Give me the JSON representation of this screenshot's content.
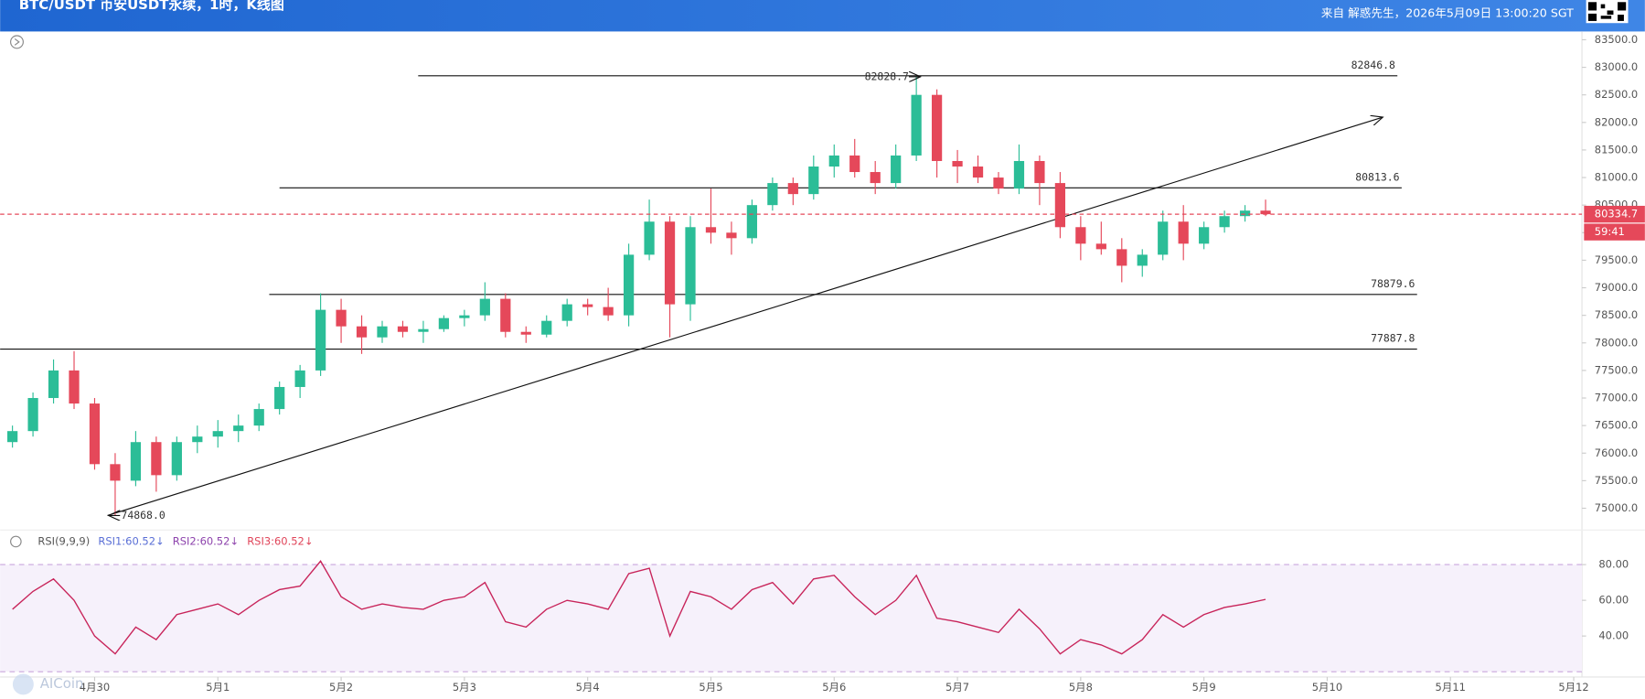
{
  "header": {
    "title": "BTC/USDT 币安USDT永续，1时，K线图",
    "source": "来自 解惑先生，2026年5月09日 13:00:20 SGT"
  },
  "watermark": "AICoin",
  "chart_data": [
    {
      "type": "candlestick",
      "x": [
        "2026-04-29 08:00",
        "2026-04-29 12:00",
        "2026-04-29 16:00",
        "2026-04-29 20:00",
        "2026-04-30 00:00",
        "2026-04-30 04:00",
        "2026-04-30 08:00",
        "2026-04-30 12:00",
        "2026-04-30 16:00",
        "2026-04-30 20:00",
        "2026-05-01 00:00",
        "2026-05-01 04:00",
        "2026-05-01 08:00",
        "2026-05-01 12:00",
        "2026-05-01 16:00",
        "2026-05-01 20:00",
        "2026-05-02 00:00",
        "2026-05-02 04:00",
        "2026-05-02 08:00",
        "2026-05-02 12:00",
        "2026-05-02 16:00",
        "2026-05-02 20:00",
        "2026-05-03 00:00",
        "2026-05-03 04:00",
        "2026-05-03 08:00",
        "2026-05-03 12:00",
        "2026-05-03 16:00",
        "2026-05-03 20:00",
        "2026-05-04 00:00",
        "2026-05-04 04:00",
        "2026-05-04 08:00",
        "2026-05-04 12:00",
        "2026-05-04 16:00",
        "2026-05-04 20:00",
        "2026-05-05 00:00",
        "2026-05-05 04:00",
        "2026-05-05 08:00",
        "2026-05-05 12:00",
        "2026-05-05 16:00",
        "2026-05-05 20:00",
        "2026-05-06 00:00",
        "2026-05-06 04:00",
        "2026-05-06 08:00",
        "2026-05-06 12:00",
        "2026-05-06 16:00",
        "2026-05-06 20:00",
        "2026-05-07 00:00",
        "2026-05-07 04:00",
        "2026-05-07 08:00",
        "2026-05-07 12:00",
        "2026-05-07 16:00",
        "2026-05-07 20:00",
        "2026-05-08 00:00",
        "2026-05-08 04:00",
        "2026-05-08 08:00",
        "2026-05-08 12:00",
        "2026-05-08 16:00",
        "2026-05-08 20:00",
        "2026-05-09 00:00",
        "2026-05-09 04:00",
        "2026-05-09 08:00",
        "2026-05-09 12:00"
      ],
      "open": [
        76200,
        76400,
        77000,
        77500,
        76900,
        75800,
        75500,
        76200,
        75600,
        76200,
        76300,
        76400,
        76500,
        76800,
        77200,
        77500,
        78600,
        78300,
        78100,
        78300,
        78200,
        78250,
        78450,
        78500,
        78800,
        78200,
        78150,
        78400,
        78700,
        78650,
        78500,
        79600,
        80200,
        78700,
        80100,
        80000,
        79900,
        80500,
        80900,
        80700,
        81200,
        81400,
        81100,
        80900,
        81400,
        82500,
        81300,
        81200,
        81000,
        80800,
        81300,
        80900,
        80100,
        79800,
        79700,
        79400,
        79600,
        80200,
        79800,
        80100,
        80300,
        80400
      ],
      "high": [
        76500,
        77100,
        77700,
        77850,
        77000,
        76000,
        76400,
        76300,
        76300,
        76500,
        76600,
        76700,
        76900,
        77300,
        77600,
        78900,
        78800,
        78500,
        78400,
        78400,
        78400,
        78500,
        78600,
        79100,
        78900,
        78300,
        78500,
        78800,
        78800,
        79000,
        79800,
        80600,
        80300,
        80300,
        80800,
        80200,
        80600,
        81000,
        81000,
        81400,
        81600,
        81700,
        81300,
        81600,
        82828.7,
        82600,
        81500,
        81400,
        81100,
        81600,
        81400,
        81100,
        80300,
        80200,
        79900,
        79700,
        80400,
        80500,
        80200,
        80400,
        80500,
        80600
      ],
      "low": [
        76100,
        76300,
        76900,
        76800,
        75700,
        74868.0,
        75400,
        75300,
        75500,
        76000,
        76100,
        76200,
        76400,
        76700,
        77000,
        77400,
        78000,
        77800,
        78000,
        78100,
        78000,
        78200,
        78300,
        78400,
        78100,
        78000,
        78100,
        78300,
        78500,
        78400,
        78300,
        79500,
        78100,
        78400,
        79800,
        79600,
        79800,
        80400,
        80500,
        80600,
        81000,
        81000,
        80700,
        80800,
        81300,
        81000,
        80900,
        80900,
        80700,
        80700,
        80500,
        79900,
        79500,
        79600,
        79100,
        79200,
        79500,
        79500,
        79700,
        80000,
        80200,
        80300
      ],
      "close": [
        76400,
        77000,
        77500,
        76900,
        75800,
        75500,
        76200,
        75600,
        76200,
        76300,
        76400,
        76500,
        76800,
        77200,
        77500,
        78600,
        78300,
        78100,
        78300,
        78200,
        78250,
        78450,
        78500,
        78800,
        78200,
        78150,
        78400,
        78700,
        78650,
        78500,
        79600,
        80200,
        78700,
        80100,
        80000,
        79900,
        80500,
        80900,
        80700,
        81200,
        81400,
        81100,
        80900,
        81400,
        82500,
        81300,
        81200,
        81000,
        80800,
        81300,
        80900,
        80100,
        79800,
        79700,
        79400,
        79600,
        80200,
        79800,
        80100,
        80300,
        80400,
        80334.7
      ],
      "up_color": "#2bbd97",
      "down_color": "#e5485a",
      "xlim": [
        "2026-04-29 05:36",
        "2026-05-12 01:36"
      ],
      "xticks": [
        {
          "value": "2026-04-30 00:00",
          "label": "4月30"
        },
        {
          "value": "2026-05-01 00:00",
          "label": "5月1"
        },
        {
          "value": "2026-05-02 00:00",
          "label": "5月2"
        },
        {
          "value": "2026-05-03 00:00",
          "label": "5月3"
        },
        {
          "value": "2026-05-04 00:00",
          "label": "5月4"
        },
        {
          "value": "2026-05-05 00:00",
          "label": "5月5"
        },
        {
          "value": "2026-05-06 00:00",
          "label": "5月6"
        },
        {
          "value": "2026-05-07 00:00",
          "label": "5月7"
        },
        {
          "value": "2026-05-08 00:00",
          "label": "5月8"
        },
        {
          "value": "2026-05-09 00:00",
          "label": "5月9"
        },
        {
          "value": "2026-05-10 00:00",
          "label": "5月10"
        },
        {
          "value": "2026-05-11 00:00",
          "label": "5月11"
        },
        {
          "value": "2026-05-12 00:00",
          "label": "5月12"
        }
      ],
      "ylim": [
        74700,
        83650
      ],
      "yticks": [
        {
          "value": 75000,
          "label": "75000.0"
        },
        {
          "value": 75500,
          "label": "75500.0"
        },
        {
          "value": 76000,
          "label": "76000.0"
        },
        {
          "value": 76500,
          "label": "76500.0"
        },
        {
          "value": 77000,
          "label": "77000.0"
        },
        {
          "value": 77500,
          "label": "77500.0"
        },
        {
          "value": 78000,
          "label": "78000.0"
        },
        {
          "value": 78500,
          "label": "78500.0"
        },
        {
          "value": 79000,
          "label": "79000.0"
        },
        {
          "value": 79500,
          "label": "79500.0"
        },
        {
          "value": 80000,
          "label": "80000.0"
        },
        {
          "value": 80500,
          "label": "80500.0"
        },
        {
          "value": 81000,
          "label": "81000.0"
        },
        {
          "value": 81500,
          "label": "81500.0"
        },
        {
          "value": 82000,
          "label": "82000.0"
        },
        {
          "value": 82500,
          "label": "82500.0"
        },
        {
          "value": 83000,
          "label": "83000.0"
        },
        {
          "value": 83500,
          "label": "83500.0"
        }
      ],
      "last_price": 80334.7,
      "countdown": "59:41",
      "levels": [
        {
          "value": 82846.8,
          "from": "2026-05-02 15:00",
          "to": "2026-05-10 13:40"
        },
        {
          "value": 80813.6,
          "from": "2026-05-01 12:00",
          "to": "2026-05-10 14:30"
        },
        {
          "value": 78879.6,
          "from": "2026-05-01 10:00",
          "to": "2026-05-10 17:30"
        },
        {
          "value": 77887.8,
          "from": "2026-04-29 05:36",
          "to": "2026-05-10 17:30"
        }
      ],
      "trend": [
        {
          "x": "2026-04-30 02:30",
          "value": 74868.0
        },
        {
          "x": "2026-05-10 10:50",
          "value": 82096
        }
      ],
      "high_note": {
        "x": "2026-05-06 17:00",
        "value": 82828.7
      },
      "low_note": {
        "x": "2026-04-30 02:30",
        "value": {
          "value": 74868.0,
          "label": "74868.0"
        }
      }
    },
    {
      "type": "line",
      "legend": [
        "RSI(9,9,9)",
        "RSI1:60.52↓",
        "RSI2:60.52↓",
        "RSI3:60.52↓"
      ],
      "legend_colors": [
        "#555555",
        "#5a6fd6",
        "#8e44ad",
        "#e0455a"
      ],
      "color": "#c8245a",
      "values": [
        55,
        65,
        72,
        60,
        40,
        30,
        45,
        38,
        52,
        55,
        58,
        52,
        60,
        66,
        68,
        82,
        62,
        55,
        58,
        56,
        55,
        60,
        62,
        70,
        48,
        45,
        55,
        60,
        58,
        55,
        75,
        78,
        40,
        65,
        62,
        55,
        66,
        70,
        58,
        72,
        74,
        62,
        52,
        60,
        74,
        50,
        48,
        45,
        42,
        55,
        44,
        30,
        38,
        35,
        30,
        38,
        52,
        45,
        52,
        56,
        58,
        60.52
      ],
      "ylim": [
        20,
        83.5
      ],
      "band": [
        20,
        80
      ],
      "yticks": [
        {
          "value": 80,
          "label": "80.00"
        },
        {
          "value": 60,
          "label": "60.00"
        },
        {
          "value": 40,
          "label": "40.00"
        }
      ]
    }
  ]
}
